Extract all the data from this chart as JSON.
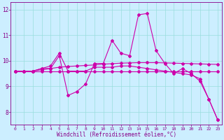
{
  "background_color": "#cceeff",
  "grid_color": "#99dddd",
  "line_color": "#cc00aa",
  "marker_color": "#cc00aa",
  "text_color": "#880088",
  "xlabel": "Windchill (Refroidissement éolien,°C)",
  "ylim": [
    7.5,
    12.3
  ],
  "xlim": [
    -0.5,
    23.5
  ],
  "yticks": [
    8,
    9,
    10,
    11,
    12
  ],
  "xticks": [
    0,
    1,
    2,
    3,
    4,
    5,
    6,
    7,
    8,
    9,
    10,
    11,
    12,
    13,
    14,
    15,
    16,
    17,
    18,
    19,
    20,
    21,
    22,
    23
  ],
  "series1": [
    9.6,
    9.6,
    9.6,
    9.7,
    9.7,
    10.2,
    8.65,
    8.8,
    9.1,
    9.9,
    9.9,
    10.8,
    10.3,
    10.2,
    11.8,
    11.85,
    10.4,
    9.9,
    9.5,
    9.7,
    9.5,
    9.2,
    8.5,
    7.7
  ],
  "series2": [
    9.6,
    9.6,
    9.6,
    9.7,
    9.8,
    10.3,
    9.6,
    9.6,
    9.6,
    9.75,
    9.75,
    9.75,
    9.8,
    9.8,
    9.75,
    9.7,
    9.65,
    9.6,
    9.55,
    9.5,
    9.45,
    9.3,
    8.5,
    7.7
  ],
  "series3": [
    9.6,
    9.6,
    9.6,
    9.65,
    9.7,
    9.75,
    9.78,
    9.8,
    9.82,
    9.84,
    9.87,
    9.89,
    9.91,
    9.92,
    9.93,
    9.93,
    9.93,
    9.92,
    9.91,
    9.9,
    9.89,
    9.88,
    9.87,
    9.86
  ],
  "series4": [
    9.6,
    9.6,
    9.6,
    9.6,
    9.6,
    9.6,
    9.6,
    9.6,
    9.6,
    9.6,
    9.6,
    9.6,
    9.6,
    9.6,
    9.6,
    9.6,
    9.6,
    9.6,
    9.6,
    9.6,
    9.6,
    9.6,
    9.6,
    9.6
  ]
}
